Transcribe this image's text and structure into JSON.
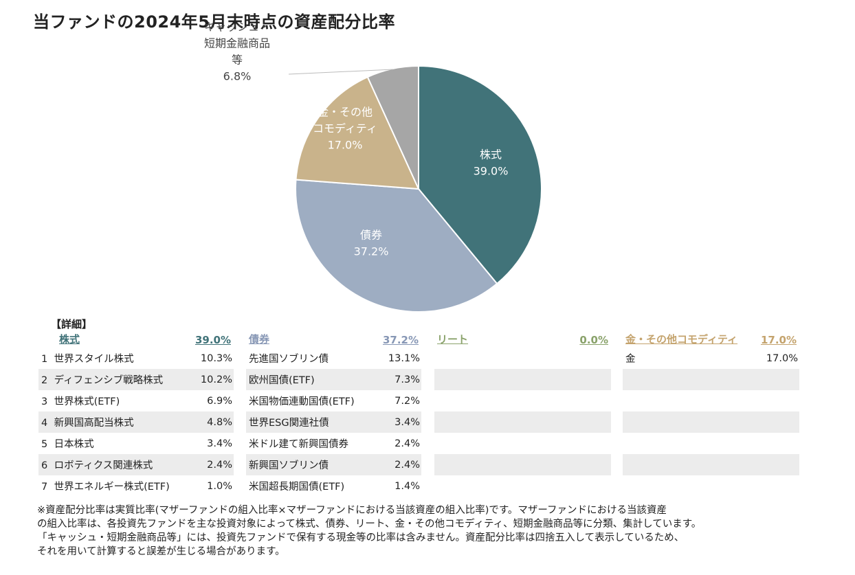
{
  "title": "当ファンドの2024年5月末時点の資産配分比率",
  "chart_data": {
    "type": "pie",
    "slices": [
      {
        "name": "株式",
        "value": 39.0,
        "label": "39.0%",
        "color": "#417379"
      },
      {
        "name": "債券",
        "value": 37.2,
        "label": "37.2%",
        "color": "#9eadc2"
      },
      {
        "name": "金・その他コモディティ",
        "value": 17.0,
        "label": "17.0%",
        "color": "#c9b38b"
      },
      {
        "name": "キャッシュ・短期金融商品等",
        "value": 6.8,
        "label": "6.8%",
        "color": "#a6a6a6"
      }
    ],
    "label_lines": {
      "0": [
        "株式"
      ],
      "1": [
        "債券"
      ],
      "2": [
        "金・その他",
        "コモディティ"
      ],
      "3": [
        "キャッシュ・",
        "短期金融商品",
        "等"
      ]
    }
  },
  "detail": {
    "heading": "【詳細】",
    "columns": [
      {
        "name": "株式",
        "total": "39.0%",
        "color": "#417379",
        "items": [
          {
            "num": "1",
            "name": "世界スタイル株式",
            "value": "10.3%"
          },
          {
            "num": "2",
            "name": "ディフェンシブ戦略株式",
            "value": "10.2%"
          },
          {
            "num": "3",
            "name": "世界株式(ETF)",
            "value": "6.9%"
          },
          {
            "num": "4",
            "name": "新興国高配当株式",
            "value": "4.8%"
          },
          {
            "num": "5",
            "name": "日本株式",
            "value": "3.4%"
          },
          {
            "num": "6",
            "name": "ロボティクス関連株式",
            "value": "2.4%"
          },
          {
            "num": "7",
            "name": "世界エネルギー株式(ETF)",
            "value": "1.0%"
          }
        ]
      },
      {
        "name": "債券",
        "total": "37.2%",
        "color": "#8797b5",
        "items": [
          {
            "num": "",
            "name": "先進国ソブリン債",
            "value": "13.1%"
          },
          {
            "num": "",
            "name": "欧州国債(ETF)",
            "value": "7.3%"
          },
          {
            "num": "",
            "name": "米国物価連動国債(ETF)",
            "value": "7.2%"
          },
          {
            "num": "",
            "name": "世界ESG関連社債",
            "value": "3.4%"
          },
          {
            "num": "",
            "name": "米ドル建て新興国債券",
            "value": "2.4%"
          },
          {
            "num": "",
            "name": "新興国ソブリン債",
            "value": "2.4%"
          },
          {
            "num": "",
            "name": "米国超長期国債(ETF)",
            "value": "1.4%"
          }
        ]
      },
      {
        "name": "リート",
        "total": "0.0%",
        "color": "#8aa26b",
        "items": [
          {
            "num": "",
            "name": "",
            "value": ""
          },
          {
            "num": "",
            "name": "",
            "value": ""
          },
          {
            "num": "",
            "name": "",
            "value": ""
          },
          {
            "num": "",
            "name": "",
            "value": ""
          },
          {
            "num": "",
            "name": "",
            "value": ""
          },
          {
            "num": "",
            "name": "",
            "value": ""
          },
          {
            "num": "",
            "name": "",
            "value": ""
          }
        ]
      },
      {
        "name": "金・その他コモディティ",
        "total": "17.0%",
        "color": "#c4a36d",
        "items": [
          {
            "num": "",
            "name": "金",
            "value": "17.0%"
          },
          {
            "num": "",
            "name": "",
            "value": ""
          },
          {
            "num": "",
            "name": "",
            "value": ""
          },
          {
            "num": "",
            "name": "",
            "value": ""
          },
          {
            "num": "",
            "name": "",
            "value": ""
          },
          {
            "num": "",
            "name": "",
            "value": ""
          },
          {
            "num": "",
            "name": "",
            "value": ""
          }
        ]
      }
    ]
  },
  "note_lines": [
    "※資産配分比率は実質比率(マザーファンドの組入比率×マザーファンドにおける当該資産の組入比率)です。マザーファンドにおける当該資産",
    "の組入比率は、各投資先ファンドを主な投資対象によって株式、債券、リート、金・その他コモディティ、短期金融商品等に分類、集計しています。",
    "「キャッシュ・短期金融商品等」には、投資先ファンドで保有する現金等の比率は含みません。資産配分比率は四捨五入して表示しているため、",
    "それを用いて計算すると誤差が生じる場合があります。"
  ]
}
